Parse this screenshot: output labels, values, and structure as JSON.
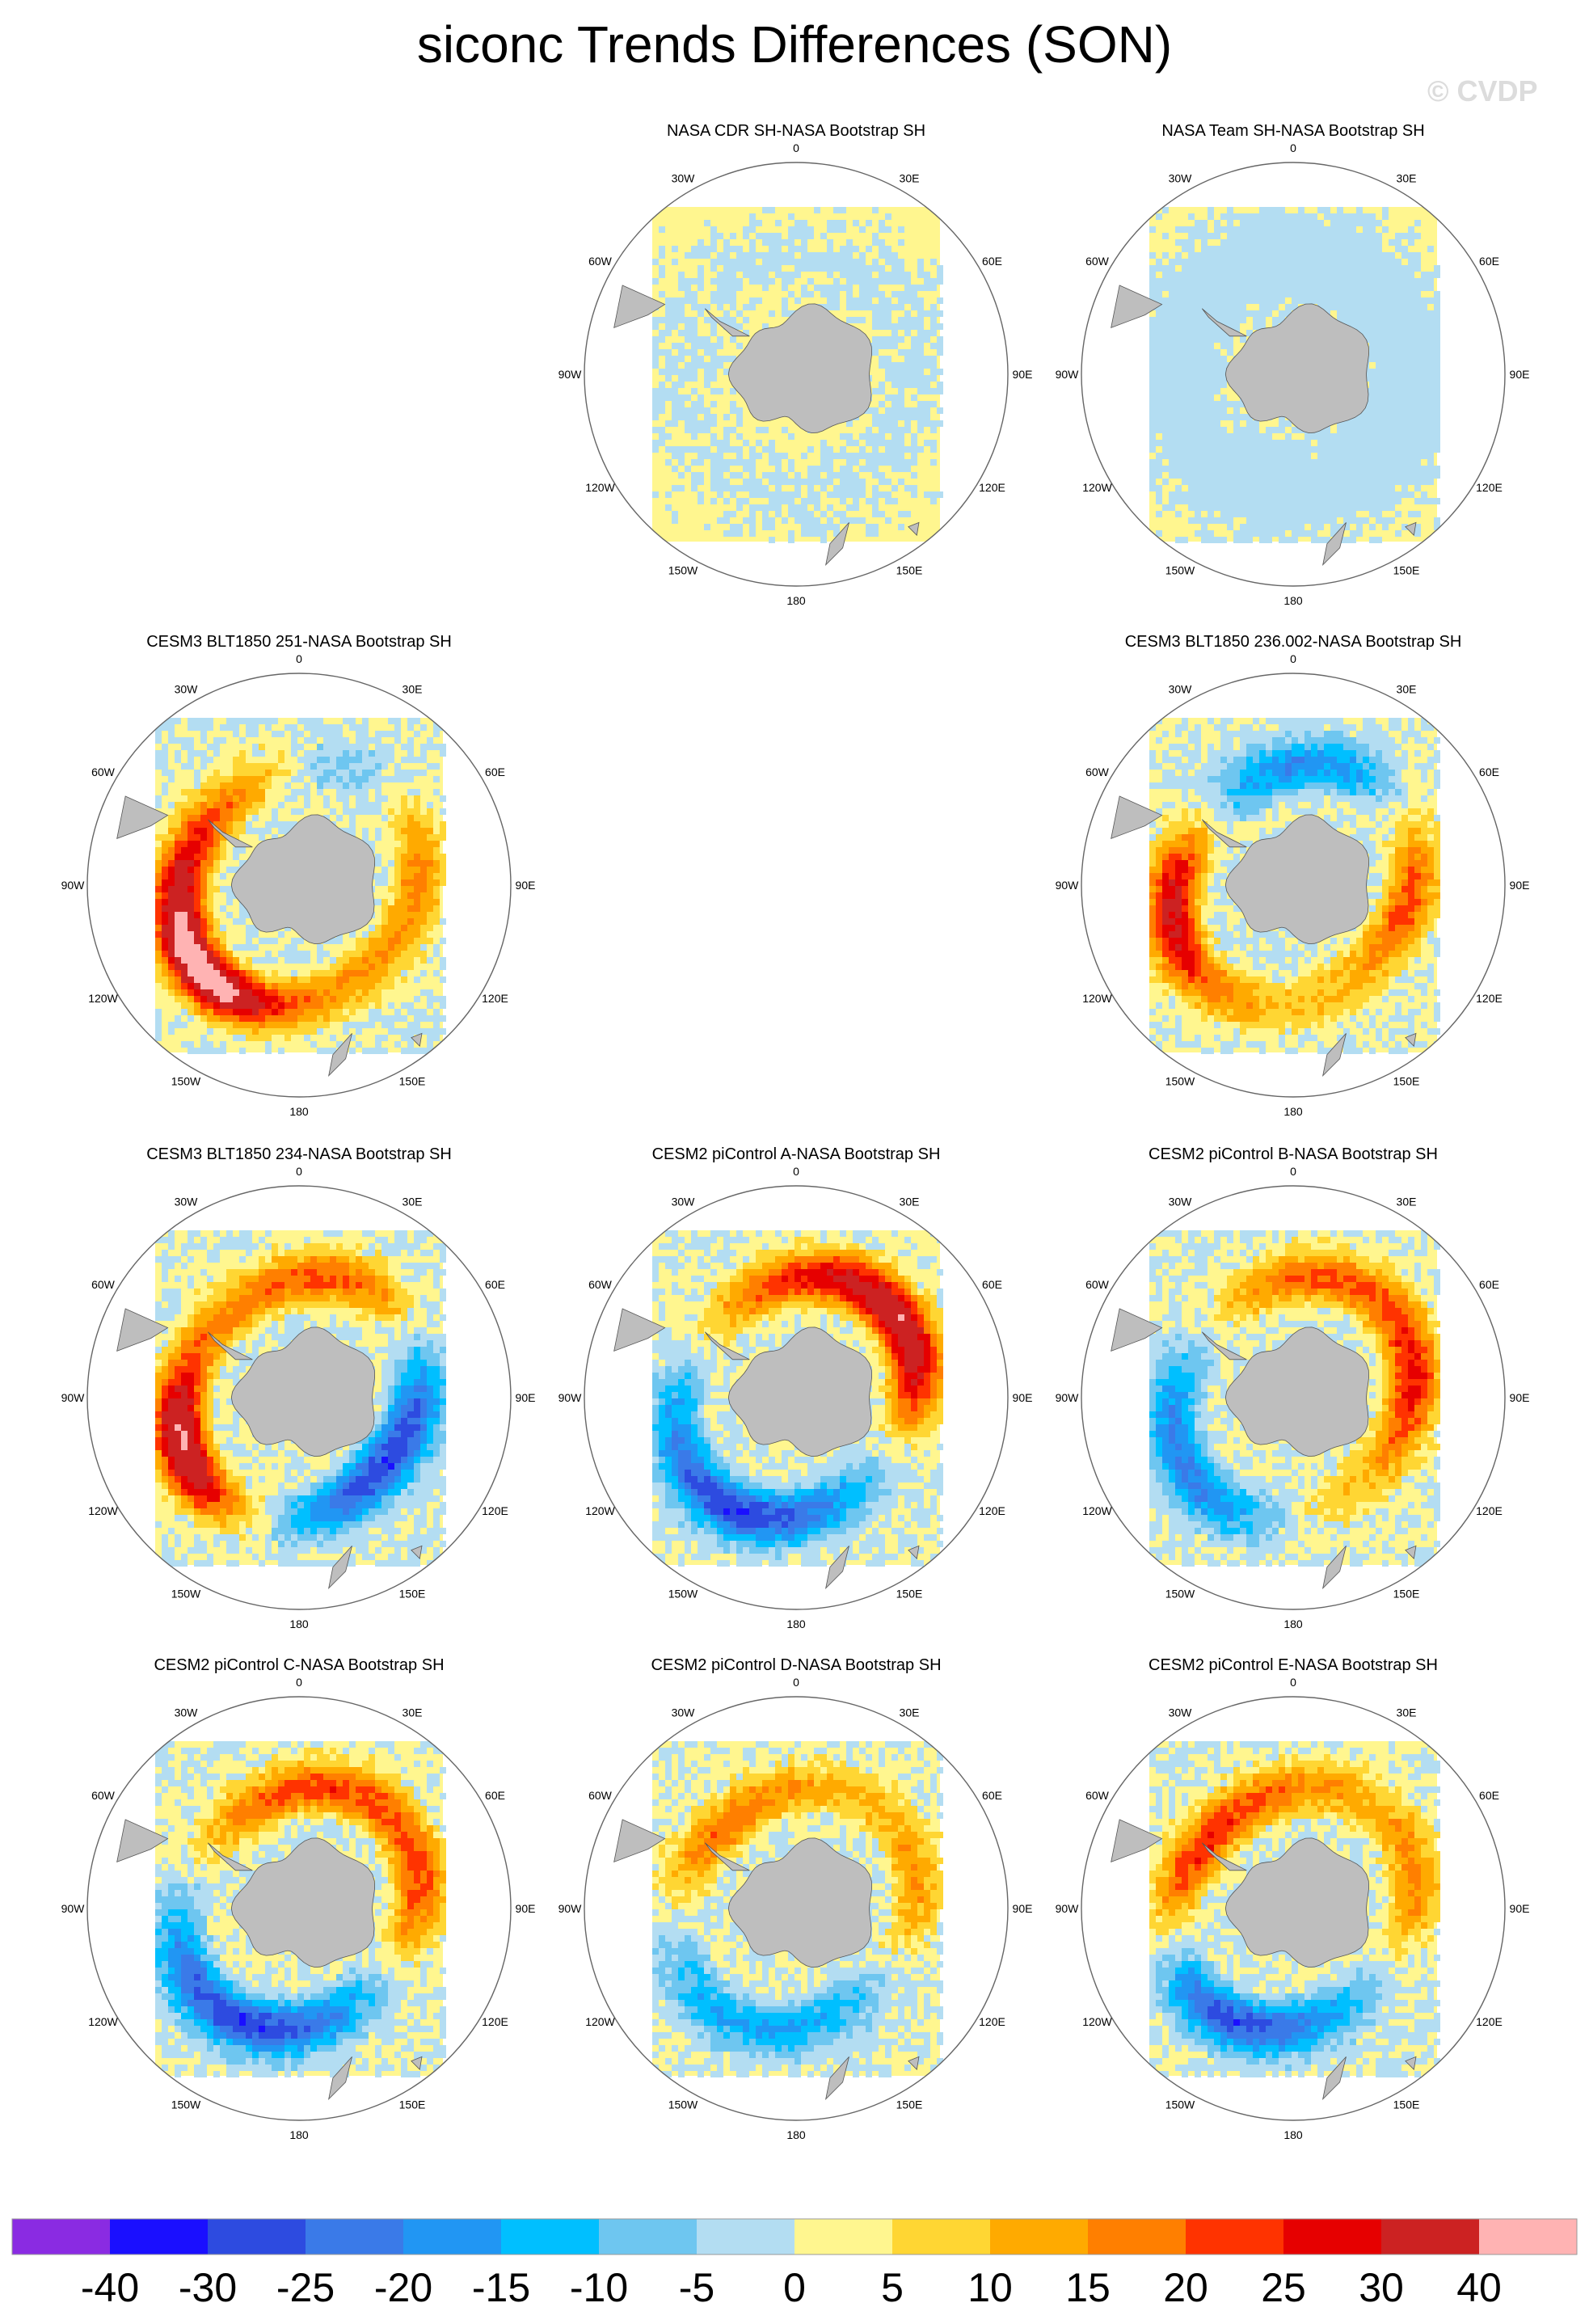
{
  "figure": {
    "title": "siconc Trends Differences (SON)",
    "watermark": "© CVDP"
  },
  "map_labels": {
    "0": "0",
    "30E": "30E",
    "60E": "60E",
    "90E": "90E",
    "120E": "120E",
    "150E": "150E",
    "180": "180",
    "150W": "150W",
    "120W": "120W",
    "90W": "90W",
    "60W": "60W",
    "30W": "30W"
  },
  "colors": {
    "land": "#bebebe",
    "colorbar": [
      "#8a2be2",
      "#1a0fff",
      "#2d4be0",
      "#3a7ae8",
      "#2196f3",
      "#00bfff",
      "#6ec6f0",
      "#b3ddf2",
      "#fff68f",
      "#ffd633",
      "#ffaa00",
      "#ff7f00",
      "#ff3300",
      "#e60000",
      "#cc2222",
      "#ffb3b3"
    ]
  },
  "colorbar": {
    "labels": [
      "-40",
      "-30",
      "-25",
      "-20",
      "-15",
      "-10",
      "-5",
      "0",
      "5",
      "10",
      "15",
      "20",
      "25",
      "30",
      "40"
    ]
  },
  "panels": [
    {
      "id": "p01",
      "title": "NASA CDR SH-NASA Bootstrap SH",
      "pattern": "obs_cdr"
    },
    {
      "id": "p02",
      "title": "NASA Team SH-NASA Bootstrap SH",
      "pattern": "obs_team"
    },
    {
      "id": "p03",
      "title": "CESM3 BLT1850 251-NASA Bootstrap SH",
      "pattern": "blt251"
    },
    {
      "id": "p04",
      "title": "CESM3 BLT1850 236.002-NASA Bootstrap SH",
      "pattern": "blt236"
    },
    {
      "id": "p05",
      "title": "CESM3 BLT1850 234-NASA Bootstrap SH",
      "pattern": "blt234"
    },
    {
      "id": "p06",
      "title": "CESM2 piControl A-NASA Bootstrap SH",
      "pattern": "picA"
    },
    {
      "id": "p07",
      "title": "CESM2 piControl B-NASA Bootstrap SH",
      "pattern": "picB"
    },
    {
      "id": "p08",
      "title": "CESM2 piControl C-NASA Bootstrap SH",
      "pattern": "picC"
    },
    {
      "id": "p09",
      "title": "CESM2 piControl D-NASA Bootstrap SH",
      "pattern": "picD"
    },
    {
      "id": "p10",
      "title": "CESM2 piControl E-NASA Bootstrap SH",
      "pattern": "picE"
    }
  ]
}
